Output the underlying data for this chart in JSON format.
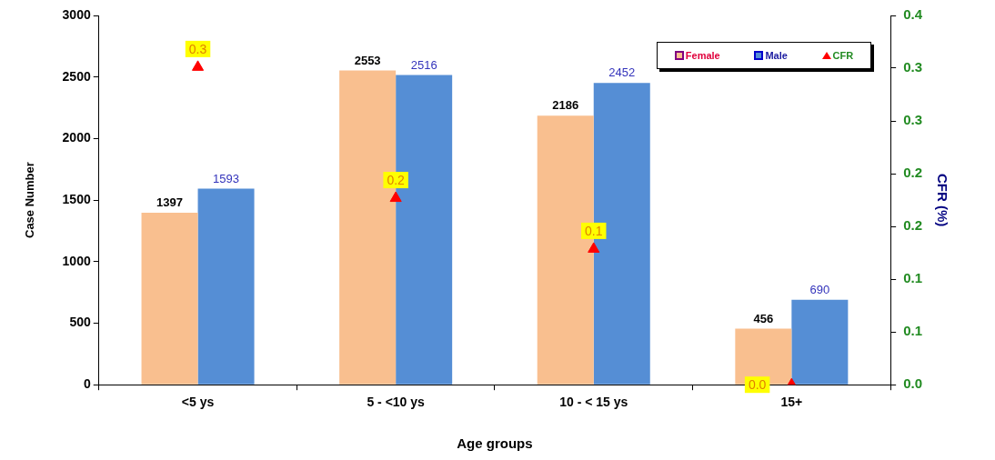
{
  "chart_data": {
    "type": "bar",
    "xlabel": "Age groups",
    "ylabel": "Case Number",
    "y2label": "CFR (%)",
    "categories": [
      "<5 ys",
      "5 - <10 ys",
      "10 - < 15 ys",
      "15+"
    ],
    "series": [
      {
        "name": "Female",
        "color": "#f9bf8f",
        "values": [
          1397,
          2553,
          2186,
          456
        ],
        "value_labels": [
          "1397",
          "2553",
          "2186",
          "456"
        ]
      },
      {
        "name": "Male",
        "color": "#558ed5",
        "values": [
          1593,
          2516,
          2452,
          690
        ],
        "value_labels": [
          "1593",
          "2516",
          "2452",
          "690"
        ]
      },
      {
        "name": "CFR",
        "type": "scatter",
        "axis": "y2",
        "marker": "triangle",
        "color": "#ff0000",
        "values": [
          0.344,
          0.202,
          0.147,
          0
        ],
        "value_labels": [
          "0.3",
          "0.2",
          "0.1",
          "0.0"
        ]
      }
    ],
    "ylim": [
      0,
      3000
    ],
    "yticks": [
      0,
      500,
      1000,
      1500,
      2000,
      2500,
      3000
    ],
    "y2lim": [
      0,
      0.4
    ],
    "y2ticks": [
      {
        "value": 0,
        "label": "0.0"
      },
      {
        "value": 0.0571,
        "label": "0.1"
      },
      {
        "value": 0.1143,
        "label": "0.1"
      },
      {
        "value": 0.1714,
        "label": "0.2"
      },
      {
        "value": 0.2286,
        "label": "0.2"
      },
      {
        "value": 0.2857,
        "label": "0.3"
      },
      {
        "value": 0.3429,
        "label": "0.3"
      },
      {
        "value": 0.4,
        "label": "0.4"
      }
    ],
    "grid": false,
    "legend": "top right"
  }
}
